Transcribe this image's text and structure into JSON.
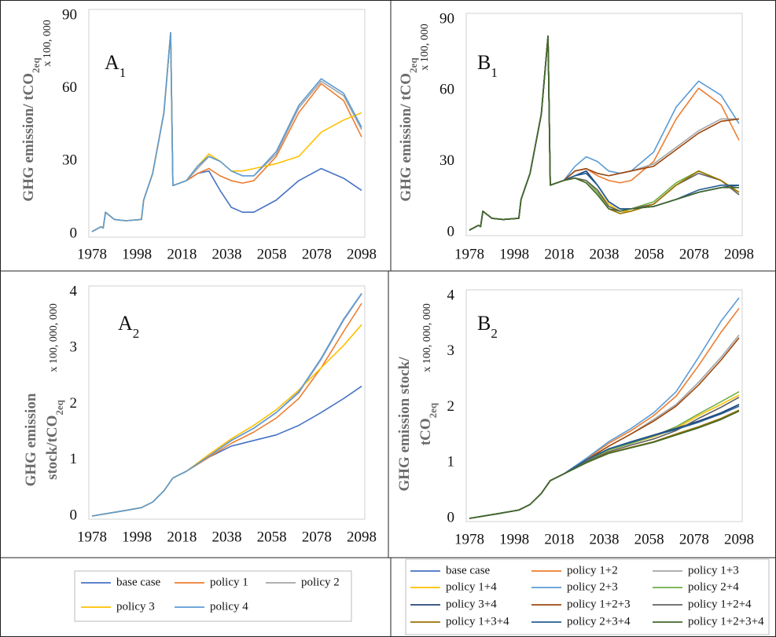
{
  "chart_data": [
    {
      "type": "line",
      "panel_main": "A",
      "panel_sub": "1",
      "ylabel_lines": [
        "GHG emission/ tCO"
      ],
      "ylabel_sub": "2eq",
      "y_multiplier": "x 100, 000",
      "x": [
        1978,
        1982,
        1983,
        1984,
        1988,
        1993,
        2000,
        2001,
        2005,
        2010,
        2013,
        2014,
        2020,
        2025,
        2030,
        2035,
        2040,
        2045,
        2050,
        2060,
        2070,
        2080,
        2090,
        2098
      ],
      "xlim": [
        1978,
        2098
      ],
      "xticks": [
        1978,
        1998,
        2018,
        2038,
        2058,
        2078,
        2098
      ],
      "ylim": [
        0,
        90
      ],
      "yticks": [
        0,
        30,
        60,
        90
      ],
      "series": [
        {
          "name": "base case",
          "color": "#4472c4",
          "values": [
            1,
            3,
            2.5,
            9,
            6,
            5.5,
            6,
            14,
            25,
            50,
            83,
            20,
            22,
            25,
            26,
            18,
            11,
            9,
            9,
            14,
            22,
            27,
            23,
            18
          ]
        },
        {
          "name": "policy 1",
          "color": "#ed7d31",
          "values": [
            1,
            3,
            2.5,
            9,
            6,
            5.5,
            6,
            14,
            25,
            50,
            83,
            20,
            22,
            25,
            27,
            24,
            22,
            21,
            22,
            32,
            50,
            62,
            55,
            40
          ]
        },
        {
          "name": "policy 2",
          "color": "#a5a5a5",
          "values": [
            1,
            3,
            2.5,
            9,
            6,
            5.5,
            6,
            14,
            25,
            50,
            83,
            20,
            22,
            27,
            32,
            30,
            26,
            24,
            24,
            33,
            52,
            63,
            57,
            43
          ]
        },
        {
          "name": "policy 3",
          "color": "#ffc000",
          "values": [
            1,
            3,
            2.5,
            9,
            6,
            5.5,
            6,
            14,
            25,
            50,
            83,
            20,
            22,
            28,
            33,
            30,
            26,
            26,
            27,
            29,
            32,
            42,
            47,
            50
          ]
        },
        {
          "name": "policy 4",
          "color": "#5b9bd5",
          "values": [
            1,
            3,
            2.5,
            9,
            6,
            5.5,
            6,
            14,
            25,
            50,
            83,
            20,
            22,
            28,
            32,
            30,
            26,
            24,
            24,
            34,
            53,
            64,
            58,
            44
          ]
        }
      ]
    },
    {
      "type": "line",
      "panel_main": "B",
      "panel_sub": "1",
      "ylabel_lines": [
        "GHG emission/ tCO"
      ],
      "ylabel_sub": "2eq",
      "y_multiplier": "x 100, 000",
      "x": [
        1978,
        1982,
        1983,
        1984,
        1988,
        1993,
        2000,
        2001,
        2005,
        2010,
        2013,
        2014,
        2020,
        2025,
        2030,
        2035,
        2040,
        2045,
        2050,
        2060,
        2070,
        2080,
        2090,
        2098
      ],
      "xlim": [
        1978,
        2098
      ],
      "xticks": [
        1978,
        1998,
        2018,
        2038,
        2058,
        2078,
        2098
      ],
      "ylim": [
        0,
        90
      ],
      "yticks": [
        0,
        30,
        60,
        90
      ],
      "series": [
        {
          "name": "base case",
          "color": "#4472c4",
          "values": [
            1,
            3,
            2.5,
            9,
            6,
            5.5,
            6,
            14,
            25,
            50,
            83,
            20,
            22,
            24,
            26,
            20,
            13,
            10,
            10,
            11,
            14,
            17,
            19,
            20
          ]
        },
        {
          "name": "policy 1+2",
          "color": "#ed7d31",
          "values": [
            1,
            3,
            2.5,
            9,
            6,
            5.5,
            6,
            14,
            25,
            50,
            83,
            20,
            22,
            26,
            27,
            24,
            22,
            21,
            22,
            30,
            48,
            61,
            54,
            39
          ]
        },
        {
          "name": "policy 1+3",
          "color": "#a5a5a5",
          "values": [
            1,
            3,
            2.5,
            9,
            6,
            5.5,
            6,
            14,
            25,
            50,
            83,
            20,
            22,
            26,
            27,
            25,
            24,
            25,
            26,
            29,
            36,
            43,
            48,
            48
          ]
        },
        {
          "name": "policy 1+4",
          "color": "#ffc000",
          "values": [
            1,
            3,
            2.5,
            9,
            6,
            5.5,
            6,
            14,
            25,
            50,
            83,
            20,
            22,
            23,
            22,
            18,
            12,
            9,
            9,
            12,
            20,
            26,
            22,
            17
          ]
        },
        {
          "name": "policy 2+3",
          "color": "#5b9bd5",
          "values": [
            1,
            3,
            2.5,
            9,
            6,
            5.5,
            6,
            14,
            25,
            50,
            83,
            20,
            22,
            28,
            32,
            30,
            26,
            25,
            26,
            34,
            53,
            64,
            58,
            46
          ]
        },
        {
          "name": "policy 2+4",
          "color": "#70ad47",
          "values": [
            1,
            3,
            2.5,
            9,
            6,
            5.5,
            6,
            14,
            25,
            50,
            83,
            20,
            22,
            23,
            22,
            17,
            11,
            9,
            10,
            13,
            21,
            26,
            22,
            16
          ]
        },
        {
          "name": "policy 3+4",
          "color": "#264478",
          "values": [
            1,
            3,
            2.5,
            9,
            6,
            5.5,
            6,
            14,
            25,
            50,
            83,
            20,
            22,
            24,
            26,
            20,
            13,
            10,
            10,
            11,
            14,
            17,
            19,
            20
          ]
        },
        {
          "name": "policy 1+2+3",
          "color": "#9e480e",
          "values": [
            1,
            3,
            2.5,
            9,
            6,
            5.5,
            6,
            14,
            25,
            50,
            83,
            20,
            22,
            26,
            27,
            25,
            24,
            25,
            26,
            28,
            35,
            42,
            47,
            48
          ]
        },
        {
          "name": "policy 1+2+4",
          "color": "#636363",
          "values": [
            1,
            3,
            2.5,
            9,
            6,
            5.5,
            6,
            14,
            25,
            50,
            83,
            20,
            22,
            23,
            22,
            18,
            11,
            9,
            10,
            12,
            20,
            25,
            22,
            16
          ]
        },
        {
          "name": "policy 1+3+4",
          "color": "#997300",
          "values": [
            1,
            3,
            2.5,
            9,
            6,
            5.5,
            6,
            14,
            25,
            50,
            83,
            20,
            22,
            23,
            21,
            16,
            10,
            8,
            9,
            12,
            20,
            26,
            22,
            17
          ]
        },
        {
          "name": "policy 2+3+4",
          "color": "#255e91",
          "values": [
            1,
            3,
            2.5,
            9,
            6,
            5.5,
            6,
            14,
            25,
            50,
            83,
            20,
            22,
            24,
            25,
            20,
            13,
            10,
            10,
            11,
            14,
            18,
            20,
            20
          ]
        },
        {
          "name": "policy 1+2+3+4",
          "color": "#43682b",
          "values": [
            1,
            3,
            2.5,
            9,
            6,
            5.5,
            6,
            14,
            25,
            50,
            83,
            20,
            22,
            23,
            21,
            16,
            10,
            9,
            10,
            11,
            14,
            17,
            19,
            19
          ]
        }
      ]
    },
    {
      "type": "line",
      "panel_main": "A",
      "panel_sub": "2",
      "ylabel_lines": [
        "GHG emission",
        "stock/tCO"
      ],
      "ylabel_sub": "2eq",
      "y_multiplier": "x 100, 000, 000",
      "x": [
        1978,
        1990,
        2000,
        2005,
        2010,
        2014,
        2020,
        2030,
        2040,
        2050,
        2060,
        2070,
        2080,
        2090,
        2098
      ],
      "xlim": [
        1978,
        2098
      ],
      "xticks": [
        1978,
        1998,
        2018,
        2038,
        2058,
        2078,
        2098
      ],
      "ylim": [
        0,
        4
      ],
      "yticks": [
        0,
        1,
        2,
        3,
        4
      ],
      "series": [
        {
          "name": "base case",
          "color": "#4472c4",
          "values": [
            0,
            0.08,
            0.15,
            0.25,
            0.45,
            0.68,
            0.8,
            1.05,
            1.25,
            1.35,
            1.45,
            1.62,
            1.85,
            2.1,
            2.32
          ]
        },
        {
          "name": "policy 1",
          "color": "#ed7d31",
          "values": [
            0,
            0.08,
            0.15,
            0.25,
            0.45,
            0.68,
            0.8,
            1.05,
            1.3,
            1.5,
            1.75,
            2.1,
            2.65,
            3.3,
            3.8
          ]
        },
        {
          "name": "policy 2",
          "color": "#a5a5a5",
          "values": [
            0,
            0.08,
            0.15,
            0.25,
            0.45,
            0.68,
            0.8,
            1.07,
            1.35,
            1.57,
            1.85,
            2.2,
            2.8,
            3.5,
            3.97
          ]
        },
        {
          "name": "policy 3",
          "color": "#ffc000",
          "values": [
            0,
            0.08,
            0.15,
            0.25,
            0.45,
            0.68,
            0.8,
            1.1,
            1.38,
            1.62,
            1.9,
            2.25,
            2.65,
            3.05,
            3.42
          ]
        },
        {
          "name": "policy 4",
          "color": "#5b9bd5",
          "values": [
            0,
            0.08,
            0.15,
            0.25,
            0.45,
            0.68,
            0.8,
            1.07,
            1.35,
            1.57,
            1.85,
            2.22,
            2.82,
            3.52,
            3.98
          ]
        }
      ]
    },
    {
      "type": "line",
      "panel_main": "B",
      "panel_sub": "2",
      "ylabel_lines": [
        "GHG emission stock/",
        "tCO"
      ],
      "ylabel_sub": "2eq",
      "y_multiplier": "x 100, 000, 000",
      "x": [
        1978,
        1990,
        2000,
        2005,
        2010,
        2014,
        2020,
        2030,
        2040,
        2050,
        2060,
        2070,
        2080,
        2090,
        2098
      ],
      "xlim": [
        1978,
        2098
      ],
      "xticks": [
        1978,
        1998,
        2018,
        2038,
        2058,
        2078,
        2098
      ],
      "ylim": [
        0,
        4
      ],
      "yticks": [
        0,
        1,
        2,
        3,
        4
      ],
      "series": [
        {
          "name": "base case",
          "color": "#4472c4",
          "values": [
            0,
            0.08,
            0.15,
            0.25,
            0.45,
            0.68,
            0.8,
            1.05,
            1.25,
            1.38,
            1.5,
            1.62,
            1.75,
            1.9,
            2.05
          ]
        },
        {
          "name": "policy 1+2",
          "color": "#ed7d31",
          "values": [
            0,
            0.08,
            0.15,
            0.25,
            0.45,
            0.68,
            0.8,
            1.07,
            1.35,
            1.58,
            1.85,
            2.2,
            2.75,
            3.35,
            3.78
          ]
        },
        {
          "name": "policy 1+3",
          "color": "#a5a5a5",
          "values": [
            0,
            0.08,
            0.15,
            0.25,
            0.45,
            0.68,
            0.8,
            1.05,
            1.3,
            1.52,
            1.78,
            2.05,
            2.45,
            2.9,
            3.3
          ]
        },
        {
          "name": "policy 1+4",
          "color": "#ffc000",
          "values": [
            0,
            0.08,
            0.15,
            0.25,
            0.45,
            0.68,
            0.8,
            1.03,
            1.23,
            1.35,
            1.47,
            1.62,
            1.85,
            2.05,
            2.22
          ]
        },
        {
          "name": "policy 2+3",
          "color": "#5b9bd5",
          "values": [
            0,
            0.08,
            0.15,
            0.25,
            0.45,
            0.68,
            0.8,
            1.08,
            1.38,
            1.62,
            1.9,
            2.28,
            2.9,
            3.55,
            3.97
          ]
        },
        {
          "name": "policy 2+4",
          "color": "#70ad47",
          "values": [
            0,
            0.08,
            0.15,
            0.25,
            0.45,
            0.68,
            0.8,
            1.03,
            1.23,
            1.35,
            1.48,
            1.65,
            1.88,
            2.1,
            2.28
          ]
        },
        {
          "name": "policy 3+4",
          "color": "#264478",
          "values": [
            0,
            0.08,
            0.15,
            0.25,
            0.45,
            0.68,
            0.8,
            1.05,
            1.25,
            1.38,
            1.5,
            1.62,
            1.75,
            1.9,
            2.05
          ]
        },
        {
          "name": "policy 1+2+3",
          "color": "#9e480e",
          "values": [
            0,
            0.08,
            0.15,
            0.25,
            0.45,
            0.68,
            0.8,
            1.05,
            1.3,
            1.52,
            1.75,
            2.02,
            2.4,
            2.85,
            3.25
          ]
        },
        {
          "name": "policy 1+2+4",
          "color": "#636363",
          "values": [
            0,
            0.08,
            0.15,
            0.25,
            0.45,
            0.68,
            0.8,
            1.02,
            1.2,
            1.32,
            1.43,
            1.58,
            1.8,
            2.0,
            2.18
          ]
        },
        {
          "name": "policy 1+3+4",
          "color": "#997300",
          "values": [
            0,
            0.08,
            0.15,
            0.25,
            0.45,
            0.68,
            0.8,
            1.0,
            1.18,
            1.28,
            1.38,
            1.52,
            1.65,
            1.8,
            1.95
          ]
        },
        {
          "name": "policy 2+3+4",
          "color": "#255e91",
          "values": [
            0,
            0.08,
            0.15,
            0.25,
            0.45,
            0.68,
            0.8,
            1.05,
            1.25,
            1.37,
            1.49,
            1.6,
            1.73,
            1.88,
            2.02
          ]
        },
        {
          "name": "policy 1+2+3+4",
          "color": "#43682b",
          "values": [
            0,
            0.08,
            0.15,
            0.25,
            0.45,
            0.68,
            0.8,
            1.0,
            1.17,
            1.27,
            1.37,
            1.5,
            1.63,
            1.78,
            1.93
          ]
        }
      ]
    }
  ]
}
